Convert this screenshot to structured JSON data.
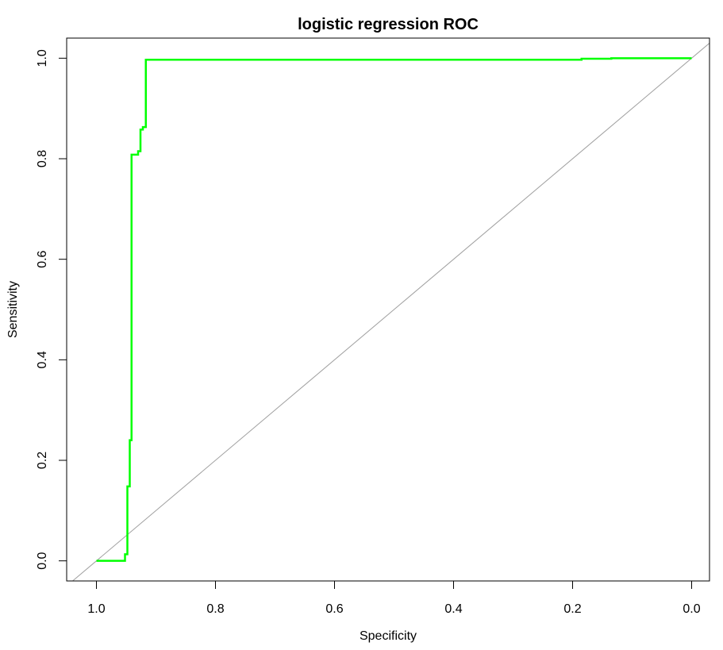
{
  "chart_data": {
    "type": "line",
    "title": "logistic regression ROC",
    "xlabel": "Specificity",
    "ylabel": "Sensitivity",
    "xlim": [
      1.05,
      -0.03
    ],
    "ylim": [
      -0.04,
      1.04
    ],
    "x_reversed": true,
    "x_ticks": [
      1.0,
      0.8,
      0.6,
      0.4,
      0.2,
      0.0
    ],
    "y_ticks": [
      0.0,
      0.2,
      0.4,
      0.6,
      0.8,
      1.0
    ],
    "x_tick_labels": [
      "1.0",
      "0.8",
      "0.6",
      "0.4",
      "0.2",
      "0.0"
    ],
    "y_tick_labels": [
      "0.0",
      "0.2",
      "0.4",
      "0.6",
      "0.8",
      "1.0"
    ],
    "grid": false,
    "series": [
      {
        "color": "#00ff00",
        "points": [
          [
            1.0,
            0.0
          ],
          [
            0.952,
            0.0
          ],
          [
            0.952,
            0.013
          ],
          [
            0.948,
            0.013
          ],
          [
            0.948,
            0.148
          ],
          [
            0.944,
            0.148
          ],
          [
            0.944,
            0.24
          ],
          [
            0.941,
            0.24
          ],
          [
            0.941,
            0.808
          ],
          [
            0.93,
            0.808
          ],
          [
            0.93,
            0.815
          ],
          [
            0.926,
            0.815
          ],
          [
            0.926,
            0.858
          ],
          [
            0.922,
            0.858
          ],
          [
            0.922,
            0.863
          ],
          [
            0.917,
            0.863
          ],
          [
            0.917,
            0.997
          ],
          [
            0.185,
            0.997
          ],
          [
            0.185,
            0.999
          ],
          [
            0.135,
            0.999
          ],
          [
            0.135,
            1.0
          ],
          [
            0.0,
            1.0
          ]
        ]
      }
    ],
    "reference_line": {
      "color": "#a0a0a0",
      "points": [
        [
          1.05,
          -0.05
        ],
        [
          -0.05,
          1.05
        ]
      ]
    }
  }
}
